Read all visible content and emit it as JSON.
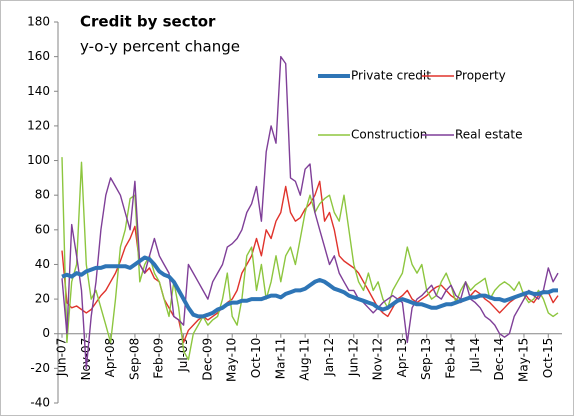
{
  "chart_data": {
    "type": "line",
    "title": "Credit by sector",
    "subtitle": "y-o-y percent change",
    "categories": [
      "Jun-07",
      null,
      null,
      null,
      null,
      "Nov-07",
      null,
      null,
      null,
      null,
      "Apr-08",
      null,
      null,
      null,
      null,
      "Sep-08",
      null,
      null,
      null,
      null,
      "Feb-09",
      null,
      null,
      null,
      null,
      "Jul-09",
      null,
      null,
      null,
      null,
      "Dec-09",
      null,
      null,
      null,
      null,
      "May-10",
      null,
      null,
      null,
      null,
      "Oct-10",
      null,
      null,
      null,
      null,
      "Mar-11",
      null,
      null,
      null,
      null,
      "Aug-11",
      null,
      null,
      null,
      null,
      "Jan-12",
      null,
      null,
      null,
      null,
      "Jun-12",
      null,
      null,
      null,
      null,
      "Nov-12",
      null,
      null,
      null,
      null,
      "Apr-13",
      null,
      null,
      null,
      null,
      "Sep-13",
      null,
      null,
      null,
      null,
      "Feb-14",
      null,
      null,
      null,
      null,
      "Jul-14",
      null,
      null,
      null,
      null,
      "Dec-14",
      null,
      null,
      null,
      null,
      "May-15",
      null,
      null,
      null,
      null,
      "Oct-15",
      null,
      null
    ],
    "series": [
      {
        "name": "Private credit",
        "color": "#2e75b6",
        "values": [
          33,
          34,
          33,
          35,
          34,
          36,
          37,
          38,
          38,
          39,
          39,
          39,
          39,
          39,
          38,
          40,
          42,
          44,
          43,
          40,
          36,
          34,
          33,
          30,
          25,
          20,
          15,
          11,
          10,
          10,
          11,
          12,
          14,
          15,
          17,
          18,
          18,
          19,
          19,
          20,
          20,
          20,
          21,
          22,
          22,
          21,
          23,
          24,
          25,
          25,
          26,
          28,
          30,
          31,
          30,
          28,
          26,
          25,
          24,
          22,
          21,
          20,
          19,
          18,
          17,
          15,
          14,
          15,
          17,
          19,
          20,
          19,
          18,
          17,
          17,
          16,
          15,
          15,
          16,
          17,
          17,
          18,
          19,
          20,
          21,
          21,
          22,
          22,
          21,
          20,
          20,
          19,
          20,
          21,
          22,
          23,
          24,
          23,
          23,
          24,
          24,
          25,
          25
        ]
      },
      {
        "name": "Property",
        "color": "#e0332c",
        "values": [
          48,
          18,
          15,
          16,
          14,
          12,
          14,
          18,
          22,
          25,
          30,
          35,
          42,
          50,
          55,
          62,
          40,
          35,
          38,
          32,
          30,
          20,
          15,
          10,
          8,
          -5,
          2,
          5,
          8,
          10,
          8,
          10,
          12,
          15,
          18,
          20,
          25,
          35,
          40,
          45,
          55,
          45,
          60,
          55,
          65,
          70,
          85,
          70,
          65,
          67,
          72,
          75,
          80,
          88,
          65,
          70,
          60,
          45,
          42,
          40,
          38,
          35,
          30,
          25,
          20,
          15,
          12,
          10,
          15,
          20,
          22,
          25,
          20,
          18,
          20,
          22,
          25,
          27,
          28,
          25,
          22,
          20,
          18,
          20,
          22,
          25,
          23,
          20,
          18,
          15,
          12,
          15,
          18,
          20,
          22,
          24,
          20,
          18,
          22,
          25,
          24,
          18,
          22
        ]
      },
      {
        "name": "Construction",
        "color": "#8dc63f",
        "values": [
          102,
          -5,
          30,
          40,
          99,
          40,
          20,
          25,
          15,
          5,
          -5,
          20,
          50,
          60,
          78,
          80,
          30,
          40,
          45,
          35,
          30,
          20,
          10,
          30,
          15,
          -10,
          -15,
          0,
          5,
          10,
          5,
          8,
          10,
          20,
          35,
          10,
          5,
          20,
          45,
          50,
          25,
          40,
          20,
          30,
          45,
          30,
          45,
          50,
          40,
          55,
          70,
          80,
          70,
          75,
          78,
          80,
          70,
          65,
          80,
          60,
          40,
          30,
          25,
          35,
          25,
          30,
          20,
          15,
          25,
          30,
          35,
          50,
          40,
          35,
          40,
          25,
          20,
          22,
          30,
          35,
          28,
          18,
          25,
          30,
          25,
          28,
          30,
          32,
          20,
          25,
          28,
          30,
          28,
          25,
          30,
          22,
          18,
          20,
          25,
          20,
          12,
          10,
          12
        ]
      },
      {
        "name": "Real estate",
        "color": "#7f3f98",
        "values": [
          32,
          0,
          63,
          45,
          25,
          -20,
          10,
          30,
          60,
          80,
          90,
          85,
          80,
          70,
          60,
          88,
          40,
          35,
          45,
          55,
          45,
          40,
          35,
          10,
          8,
          5,
          40,
          35,
          30,
          25,
          20,
          30,
          35,
          40,
          50,
          52,
          55,
          60,
          70,
          75,
          85,
          65,
          105,
          120,
          110,
          160,
          156,
          90,
          88,
          80,
          95,
          98,
          70,
          60,
          50,
          40,
          45,
          35,
          30,
          25,
          25,
          20,
          18,
          15,
          12,
          15,
          18,
          20,
          22,
          20,
          18,
          -5,
          15,
          20,
          22,
          25,
          28,
          22,
          20,
          25,
          28,
          22,
          20,
          30,
          20,
          18,
          15,
          10,
          8,
          5,
          0,
          -2,
          0,
          10,
          15,
          20,
          25,
          22,
          20,
          25,
          38,
          30,
          35
        ]
      }
    ],
    "ylim": [
      -40,
      180
    ],
    "yticks": [
      -40,
      -20,
      0,
      20,
      40,
      60,
      80,
      100,
      120,
      140,
      160,
      180
    ],
    "grid": false,
    "legend": "top-right"
  }
}
